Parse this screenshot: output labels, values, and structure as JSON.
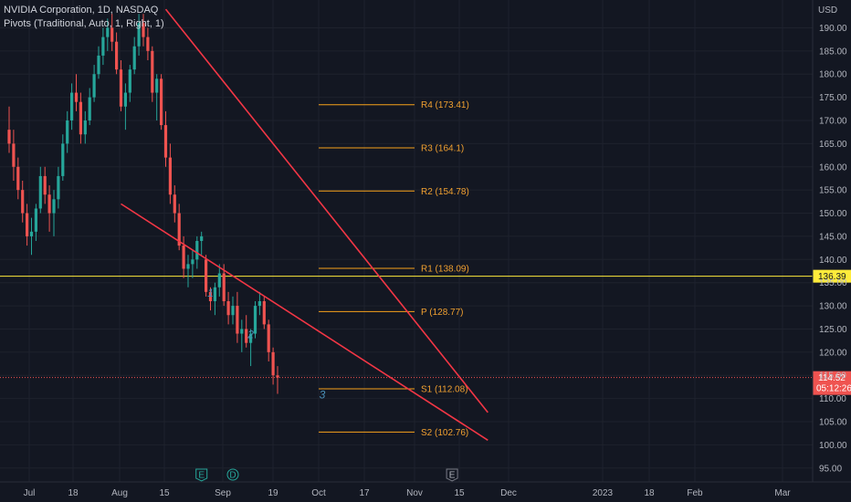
{
  "legend": {
    "symbol": "NVIDIA Corporation, 1D, NASDAQ",
    "indicator": "Pivots (Traditional, Auto, 1, Right, 1)"
  },
  "colors": {
    "background": "#131722",
    "up": "#26a69a",
    "down": "#ef5350",
    "pivot": "#f7a21b",
    "trendline": "#f23645",
    "horizontal_line": "#ffeb3b",
    "wave_label": "#4a90b8",
    "grid": "#1e222d"
  },
  "chart_data": {
    "type": "candlestick",
    "currency_label": "USD",
    "y_axis": {
      "range": [
        92,
        196
      ],
      "ticks": [
        "95.00",
        "100.00",
        "105.00",
        "110.00",
        "115.00",
        "120.00",
        "125.00",
        "130.00",
        "135.00",
        "140.00",
        "145.00",
        "150.00",
        "155.00",
        "160.00",
        "165.00",
        "170.00",
        "175.00",
        "180.00",
        "185.00",
        "190.00"
      ]
    },
    "x_axis": {
      "ticks": [
        "Jul",
        "18",
        "Aug",
        "15",
        "Sep",
        "19",
        "Oct",
        "17",
        "Nov",
        "15",
        "Dec",
        "2023",
        "18",
        "Feb",
        "Mar"
      ]
    },
    "candles": [
      {
        "o": 168,
        "h": 173,
        "l": 163,
        "c": 165
      },
      {
        "o": 165,
        "h": 168,
        "l": 157,
        "c": 160
      },
      {
        "o": 160,
        "h": 162,
        "l": 153,
        "c": 155
      },
      {
        "o": 155,
        "h": 157,
        "l": 148,
        "c": 150
      },
      {
        "o": 150,
        "h": 152,
        "l": 143,
        "c": 145
      },
      {
        "o": 145,
        "h": 149,
        "l": 141,
        "c": 146
      },
      {
        "o": 146,
        "h": 152,
        "l": 144,
        "c": 151
      },
      {
        "o": 151,
        "h": 160,
        "l": 150,
        "c": 158
      },
      {
        "o": 158,
        "h": 160,
        "l": 152,
        "c": 154
      },
      {
        "o": 154,
        "h": 156,
        "l": 146,
        "c": 150
      },
      {
        "o": 150,
        "h": 155,
        "l": 145,
        "c": 153
      },
      {
        "o": 153,
        "h": 160,
        "l": 151,
        "c": 158
      },
      {
        "o": 158,
        "h": 167,
        "l": 157,
        "c": 165
      },
      {
        "o": 165,
        "h": 172,
        "l": 163,
        "c": 170
      },
      {
        "o": 170,
        "h": 178,
        "l": 168,
        "c": 176
      },
      {
        "o": 176,
        "h": 180,
        "l": 172,
        "c": 174
      },
      {
        "o": 174,
        "h": 176,
        "l": 165,
        "c": 167
      },
      {
        "o": 167,
        "h": 172,
        "l": 165,
        "c": 170
      },
      {
        "o": 170,
        "h": 177,
        "l": 169,
        "c": 175
      },
      {
        "o": 175,
        "h": 182,
        "l": 174,
        "c": 180
      },
      {
        "o": 180,
        "h": 186,
        "l": 179,
        "c": 184
      },
      {
        "o": 184,
        "h": 190,
        "l": 182,
        "c": 188
      },
      {
        "o": 188,
        "h": 192,
        "l": 185,
        "c": 190
      },
      {
        "o": 190,
        "h": 193,
        "l": 185,
        "c": 187
      },
      {
        "o": 187,
        "h": 189,
        "l": 180,
        "c": 181
      },
      {
        "o": 181,
        "h": 183,
        "l": 172,
        "c": 173
      },
      {
        "o": 173,
        "h": 178,
        "l": 168,
        "c": 176
      },
      {
        "o": 176,
        "h": 182,
        "l": 174,
        "c": 181
      },
      {
        "o": 181,
        "h": 188,
        "l": 180,
        "c": 186
      },
      {
        "o": 186,
        "h": 193,
        "l": 184,
        "c": 191
      },
      {
        "o": 191,
        "h": 193,
        "l": 186,
        "c": 188
      },
      {
        "o": 188,
        "h": 190,
        "l": 183,
        "c": 185
      },
      {
        "o": 185,
        "h": 186,
        "l": 174,
        "c": 176
      },
      {
        "o": 176,
        "h": 180,
        "l": 170,
        "c": 179
      },
      {
        "o": 179,
        "h": 180,
        "l": 168,
        "c": 169
      },
      {
        "o": 169,
        "h": 172,
        "l": 160,
        "c": 162
      },
      {
        "o": 162,
        "h": 165,
        "l": 152,
        "c": 154
      },
      {
        "o": 154,
        "h": 156,
        "l": 148,
        "c": 150
      },
      {
        "o": 150,
        "h": 152,
        "l": 142,
        "c": 143
      },
      {
        "o": 143,
        "h": 145,
        "l": 136,
        "c": 138
      },
      {
        "o": 138,
        "h": 141,
        "l": 134,
        "c": 139
      },
      {
        "o": 139,
        "h": 142,
        "l": 136,
        "c": 140
      },
      {
        "o": 140,
        "h": 145,
        "l": 138,
        "c": 144
      },
      {
        "o": 144,
        "h": 146,
        "l": 141,
        "c": 145
      },
      {
        "o": 140,
        "h": 141,
        "l": 132,
        "c": 133
      },
      {
        "o": 133,
        "h": 134,
        "l": 129,
        "c": 131
      },
      {
        "o": 131,
        "h": 135,
        "l": 128,
        "c": 134
      },
      {
        "o": 134,
        "h": 139,
        "l": 132,
        "c": 137
      },
      {
        "o": 137,
        "h": 139,
        "l": 130,
        "c": 131
      },
      {
        "o": 131,
        "h": 133,
        "l": 126,
        "c": 128
      },
      {
        "o": 128,
        "h": 132,
        "l": 126,
        "c": 130
      },
      {
        "o": 130,
        "h": 133,
        "l": 122,
        "c": 124
      },
      {
        "o": 124,
        "h": 127,
        "l": 120,
        "c": 125
      },
      {
        "o": 125,
        "h": 128,
        "l": 121,
        "c": 122
      },
      {
        "o": 122,
        "h": 125,
        "l": 117,
        "c": 124
      },
      {
        "o": 124,
        "h": 131,
        "l": 123,
        "c": 130
      },
      {
        "o": 130,
        "h": 133,
        "l": 128,
        "c": 131
      },
      {
        "o": 131,
        "h": 132,
        "l": 125,
        "c": 126
      },
      {
        "o": 126,
        "h": 127,
        "l": 118,
        "c": 120
      },
      {
        "o": 120,
        "h": 121,
        "l": 113,
        "c": 115
      },
      {
        "o": 115,
        "h": 117,
        "l": 111,
        "c": 114.52
      }
    ],
    "pivot_levels": [
      {
        "label": "R4 (173.41)",
        "value": 173.41
      },
      {
        "label": "R3 (164.1)",
        "value": 164.1
      },
      {
        "label": "R2 (154.78)",
        "value": 154.78
      },
      {
        "label": "R1 (138.09)",
        "value": 138.09
      },
      {
        "label": "P (128.77)",
        "value": 128.77
      },
      {
        "label": "S1 (112.08)",
        "value": 112.08
      },
      {
        "label": "S2 (102.76)",
        "value": 102.76
      }
    ],
    "horizontal_line": {
      "value": 136.39,
      "label": "136.39"
    },
    "last_price": {
      "value": 114.52,
      "label": "114.52",
      "countdown": "05:12:26"
    },
    "trendlines": [
      {
        "name": "upper",
        "from": {
          "bar": 35,
          "price": 194
        },
        "to": {
          "bar": 107,
          "price": 107
        }
      },
      {
        "name": "lower",
        "from": {
          "bar": 25,
          "price": 152
        },
        "to": {
          "bar": 107,
          "price": 101
        }
      }
    ],
    "wave_labels": [
      {
        "text": "1",
        "bar": 45,
        "price": 132
      },
      {
        "text": "2",
        "bar": 54,
        "price": 123
      },
      {
        "text": "3",
        "bar": 70,
        "price": 110
      }
    ],
    "events": [
      {
        "text": "E",
        "bar": 43
      },
      {
        "text": "D",
        "bar": 50
      },
      {
        "text": "E",
        "bar": 99
      }
    ]
  }
}
